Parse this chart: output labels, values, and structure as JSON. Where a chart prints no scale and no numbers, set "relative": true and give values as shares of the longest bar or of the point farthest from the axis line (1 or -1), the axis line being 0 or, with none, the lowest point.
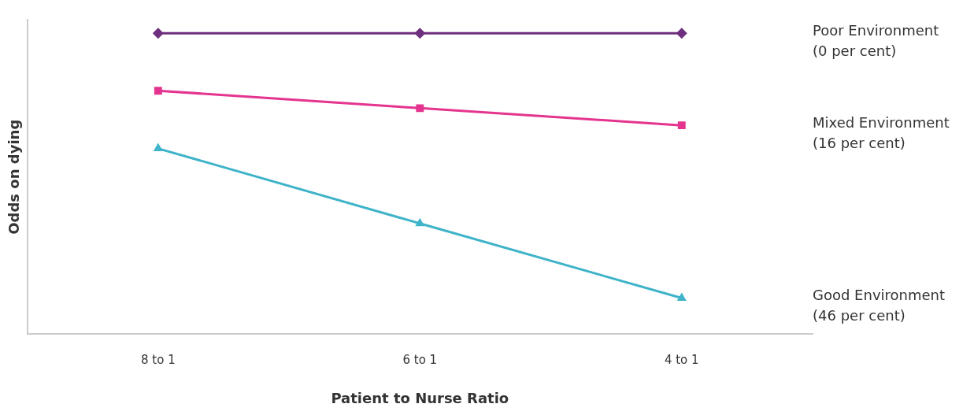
{
  "chart_data": {
    "type": "line",
    "relative": true,
    "xlabel": "Patient to Nurse Ratio",
    "ylabel": "Odds on dying",
    "categories": [
      "8 to 1",
      "6 to 1",
      "4 to 1"
    ],
    "legend": false,
    "grid": false,
    "series": [
      {
        "name": "Poor Environment\n(0 per cent)",
        "color": "#6d2f7e",
        "marker": "diamond",
        "values": [
          1,
          1,
          1
        ]
      },
      {
        "name": "Mixed Environment\n(16 per cent)",
        "color": "#e5348f",
        "marker": "square",
        "values": [
          0.809,
          0.751,
          0.694
        ]
      },
      {
        "name": "Good Environment\n(46 per cent)",
        "color": "#3fb3c9",
        "marker": "triangle",
        "values": [
          0.617,
          0.368,
          0.12
        ]
      }
    ]
  }
}
